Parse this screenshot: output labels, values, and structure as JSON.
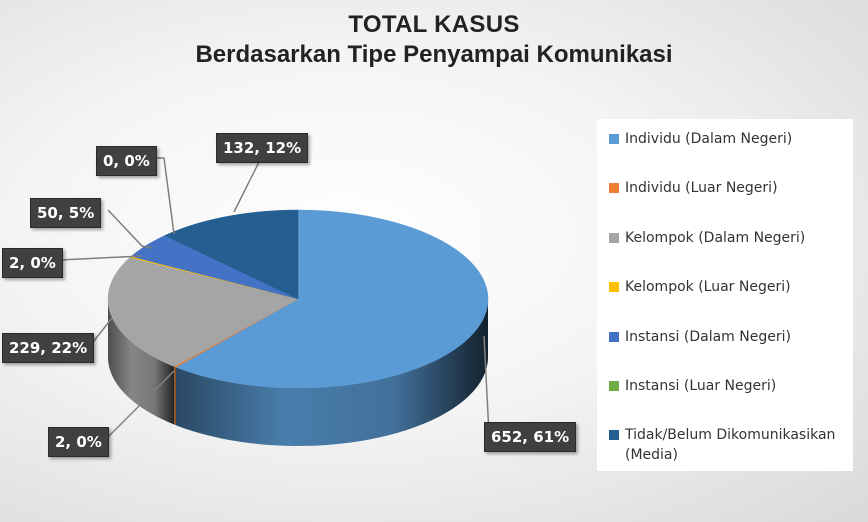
{
  "chart_data": {
    "type": "pie",
    "title": "TOTAL KASUS",
    "subtitle": "Berdasarkan Tipe Penyampai Komunikasi",
    "categories": [
      "Individu (Dalam Negeri)",
      "Individu (Luar Negeri)",
      "Kelompok (Dalam Negeri)",
      "Kelompok (Luar Negeri)",
      "Instansi (Dalam Negeri)",
      "Instansi (Luar Negeri)",
      "Tidak/Belum Dikomunikasikan (Media)"
    ],
    "values": [
      652,
      2,
      229,
      2,
      50,
      0,
      132
    ],
    "percent_labels": [
      "61%",
      "0%",
      "22%",
      "0%",
      "5%",
      "0%",
      "12%"
    ],
    "data_labels": [
      "652, 61%",
      "2, 0%",
      "229, 22%",
      "2, 0%",
      "50, 5%",
      "0, 0%",
      "132, 12%"
    ],
    "colors": [
      "#5b9bd5",
      "#ed7d31",
      "#a5a5a5",
      "#ffc000",
      "#4472c4",
      "#70ad47",
      "#255e91"
    ],
    "legend_position": "right",
    "style": "3d"
  }
}
